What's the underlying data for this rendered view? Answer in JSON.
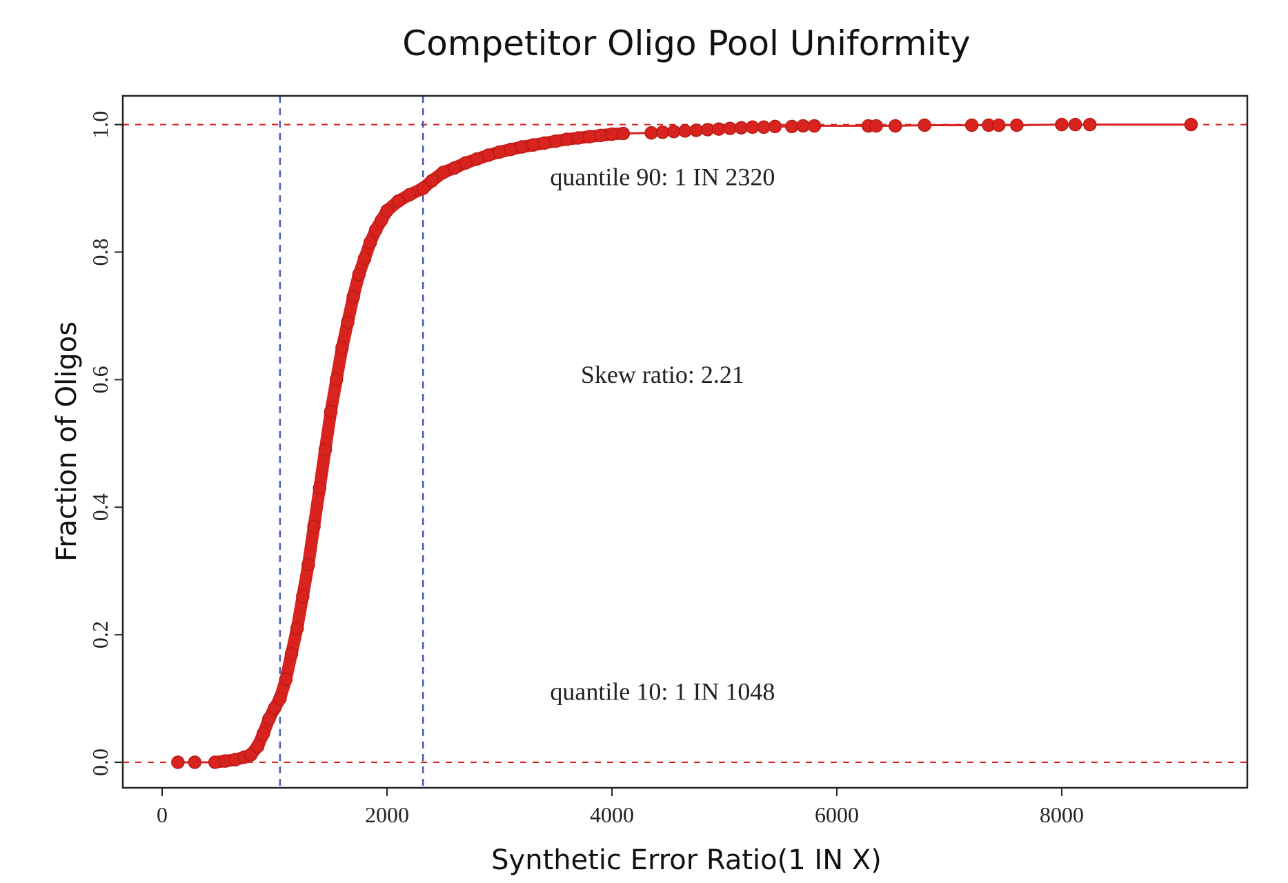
{
  "chart_data": {
    "type": "scatter",
    "title": "Competitor Oligo Pool Uniformity",
    "xlabel": "Synthetic Error Ratio(1 IN X)",
    "ylabel": "Fraction of Oligos",
    "xlim": [
      -350,
      9650
    ],
    "ylim": [
      -0.04,
      1.045
    ],
    "x_ticks": [
      0,
      2000,
      4000,
      6000,
      8000
    ],
    "x_tick_labels": [
      "0",
      "2000",
      "4000",
      "6000",
      "8000"
    ],
    "y_ticks": [
      0.0,
      0.2,
      0.4,
      0.6,
      0.8,
      1.0
    ],
    "y_tick_labels": [
      "0.0",
      "0.2",
      "0.4",
      "0.6",
      "0.8",
      "1.0"
    ],
    "grid": false,
    "legend": "none",
    "colors": {
      "points": "#d9231f",
      "reference_lines": "#4a58b8",
      "frame": "#222222"
    },
    "vertical_lines": [
      1048,
      2320
    ],
    "reference_line_y": [
      0,
      1
    ],
    "annotations": [
      {
        "text": "quantile 90: 1 IN  2320",
        "x": 4450,
        "y": 0.905
      },
      {
        "text": "Skew ratio:  2.21",
        "x": 4450,
        "y": 0.595
      },
      {
        "text": "quantile 10: 1 IN  1048",
        "x": 4450,
        "y": 0.098
      }
    ],
    "series": [
      {
        "points": [
          [
            140,
            0.0
          ],
          [
            290,
            0.0
          ],
          [
            470,
            0.0
          ],
          [
            560,
            0.002
          ],
          [
            650,
            0.004
          ],
          [
            730,
            0.008
          ],
          [
            790,
            0.012
          ],
          [
            850,
            0.025
          ],
          [
            900,
            0.045
          ],
          [
            950,
            0.068
          ],
          [
            1000,
            0.085
          ],
          [
            1048,
            0.1
          ],
          [
            1100,
            0.13
          ],
          [
            1150,
            0.17
          ],
          [
            1200,
            0.21
          ],
          [
            1250,
            0.26
          ],
          [
            1300,
            0.31
          ],
          [
            1350,
            0.37
          ],
          [
            1400,
            0.43
          ],
          [
            1450,
            0.49
          ],
          [
            1500,
            0.55
          ],
          [
            1550,
            0.6
          ],
          [
            1600,
            0.65
          ],
          [
            1650,
            0.69
          ],
          [
            1700,
            0.73
          ],
          [
            1750,
            0.765
          ],
          [
            1800,
            0.79
          ],
          [
            1850,
            0.815
          ],
          [
            1900,
            0.835
          ],
          [
            1950,
            0.85
          ],
          [
            2000,
            0.865
          ],
          [
            2100,
            0.88
          ],
          [
            2200,
            0.89
          ],
          [
            2320,
            0.9
          ],
          [
            2400,
            0.912
          ],
          [
            2500,
            0.925
          ],
          [
            2600,
            0.932
          ],
          [
            2700,
            0.94
          ],
          [
            2800,
            0.946
          ],
          [
            2900,
            0.952
          ],
          [
            3000,
            0.957
          ],
          [
            3100,
            0.961
          ],
          [
            3200,
            0.965
          ],
          [
            3300,
            0.968
          ],
          [
            3400,
            0.971
          ],
          [
            3500,
            0.974
          ],
          [
            3600,
            0.977
          ],
          [
            3700,
            0.979
          ],
          [
            3800,
            0.981
          ],
          [
            3900,
            0.983
          ],
          [
            4000,
            0.985
          ],
          [
            4100,
            0.986
          ],
          [
            4350,
            0.987
          ],
          [
            4450,
            0.988
          ],
          [
            4550,
            0.989
          ],
          [
            4650,
            0.99
          ],
          [
            4750,
            0.991
          ],
          [
            4850,
            0.992
          ],
          [
            4950,
            0.993
          ],
          [
            5050,
            0.994
          ],
          [
            5150,
            0.995
          ],
          [
            5250,
            0.996
          ],
          [
            5350,
            0.996
          ],
          [
            5450,
            0.997
          ],
          [
            5600,
            0.997
          ],
          [
            5700,
            0.998
          ],
          [
            5800,
            0.998
          ],
          [
            6280,
            0.998
          ],
          [
            6350,
            0.998
          ],
          [
            6520,
            0.998
          ],
          [
            6780,
            0.999
          ],
          [
            7200,
            0.999
          ],
          [
            7350,
            0.999
          ],
          [
            7440,
            0.999
          ],
          [
            7600,
            0.999
          ],
          [
            8000,
            1.0
          ],
          [
            8120,
            1.0
          ],
          [
            8250,
            1.0
          ],
          [
            9150,
            1.0
          ]
        ]
      }
    ]
  }
}
